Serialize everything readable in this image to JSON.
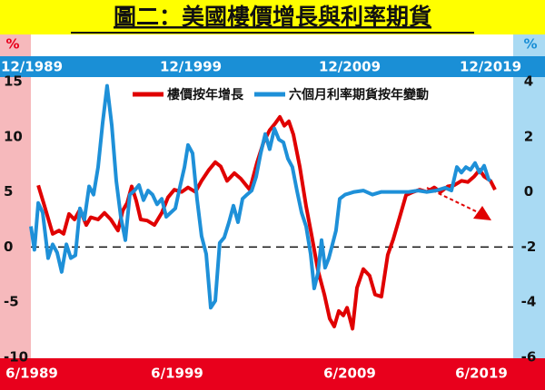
{
  "chart_data": {
    "type": "line",
    "title": "圖二：美國樓價增長與利率期貨",
    "left_unit": "%",
    "right_unit": "%",
    "top_labels": [
      "12/1989",
      "12/1999",
      "12/2009",
      "12/2019"
    ],
    "bottom_labels": [
      "6/1989",
      "6/1999",
      "6/2009",
      "6/2019"
    ],
    "xlim": [
      1989,
      2020
    ],
    "ylim": [
      -10,
      15
    ],
    "yticks": [
      -10,
      -5,
      0,
      5,
      10,
      15
    ],
    "y2lim": [
      -6,
      4
    ],
    "y2ticks": [
      -6,
      -4,
      -2,
      0,
      2,
      4
    ],
    "legend": "top-right",
    "series": [
      {
        "name": "樓價按年增長",
        "color": "#e00000",
        "x": [
          1989.47,
          1989.82,
          1990.4,
          1990.81,
          1991.1,
          1991.45,
          1991.8,
          1992.15,
          1992.56,
          1992.85,
          1993.32,
          1993.73,
          1994.14,
          1994.6,
          1994.9,
          1995.19,
          1995.48,
          1995.77,
          1996.06,
          1996.47,
          1996.94,
          1997.41,
          1997.81,
          1998.22,
          1998.69,
          1999.1,
          1999.57,
          1999.97,
          2000.44,
          2000.85,
          2001.2,
          2001.61,
          2002.08,
          2002.49,
          2003.07,
          2003.54,
          2003.95,
          2004.35,
          2004.7,
          2005.0,
          2005.29,
          2005.58,
          2005.87,
          2006.28,
          2006.69,
          2007.04,
          2007.45,
          2007.86,
          2008.21,
          2008.5,
          2008.79,
          2009.08,
          2009.32,
          2009.67,
          2009.96,
          2010.37,
          2010.77,
          2011.12,
          2011.53,
          2011.94,
          2012.29,
          2012.7,
          2013.11,
          2013.58,
          2013.99,
          2014.45,
          2014.92,
          2015.33,
          2015.8,
          2016.2,
          2016.67,
          2017.08,
          2017.49,
          2017.84,
          2018.13,
          2018.54,
          2018.83
        ],
        "values": [
          5.6,
          4,
          1.2,
          1.5,
          1.2,
          3,
          2.5,
          3.4,
          2,
          2.7,
          2.5,
          3.1,
          2.5,
          1.5,
          3.3,
          4,
          5.5,
          4.2,
          2.5,
          2.4,
          2,
          3.1,
          4.5,
          5.2,
          5,
          5.4,
          5,
          6,
          7,
          7.7,
          7.3,
          6,
          6.7,
          6.2,
          5.2,
          7.7,
          9.5,
          10.6,
          11.2,
          11.8,
          11,
          11.4,
          10.2,
          7.3,
          3.7,
          1.1,
          -2.1,
          -4.3,
          -6.5,
          -7.2,
          -5.8,
          -6.2,
          -5.5,
          -7.4,
          -3.7,
          -2,
          -2.6,
          -4.3,
          -4.5,
          -0.7,
          0.7,
          2.7,
          4.7,
          5,
          5.2,
          5,
          5.4,
          5,
          5.5,
          5.6,
          6,
          5.9,
          6.4,
          7,
          6.4,
          6,
          5.2
        ]
      },
      {
        "name": "六個月利率期貨按年變動",
        "color": "#1e90d8",
        "axis": "y2",
        "x": [
          1989.0,
          1989.23,
          1989.47,
          1989.76,
          1990.11,
          1990.4,
          1990.69,
          1990.98,
          1991.28,
          1991.57,
          1991.86,
          1992.15,
          1992.44,
          1992.74,
          1993.03,
          1993.32,
          1993.61,
          1993.9,
          1994.2,
          1994.49,
          1994.78,
          1995.07,
          1995.36,
          1995.66,
          1995.95,
          1996.24,
          1996.53,
          1996.82,
          1997.11,
          1997.41,
          1997.7,
          1997.99,
          1998.28,
          1998.57,
          1998.87,
          1999.1,
          1999.39,
          1999.68,
          1999.97,
          2000.27,
          2000.56,
          2000.85,
          2001.14,
          2001.43,
          2001.73,
          2002.02,
          2002.31,
          2002.6,
          2002.89,
          2003.19,
          2003.48,
          2003.77,
          2004.06,
          2004.35,
          2004.65,
          2004.94,
          2005.23,
          2005.52,
          2005.81,
          2006.1,
          2006.4,
          2006.69,
          2006.98,
          2007.21,
          2007.45,
          2007.68,
          2007.91,
          2008.15,
          2008.38,
          2008.61,
          2008.85,
          2009.2,
          2009.78,
          2010.37,
          2010.95,
          2011.53,
          2012.12,
          2012.7,
          2013.28,
          2013.87,
          2014.45,
          2015.04,
          2015.62,
          2016.03,
          2016.38,
          2016.67,
          2016.96,
          2017.25,
          2017.55,
          2017.84,
          2018.13,
          2018.42,
          2018.54
        ],
        "values": [
          -1.25,
          -2.1,
          -0.4,
          -0.75,
          -2.4,
          -1.9,
          -2.2,
          -2.9,
          -1.9,
          -2.4,
          -2.3,
          -0.6,
          -1,
          0.2,
          -0.1,
          0.9,
          2.5,
          3.85,
          2.4,
          0.4,
          -0.9,
          -1.75,
          -0.1,
          0.05,
          0.25,
          -0.3,
          0.05,
          -0.1,
          -0.45,
          -0.25,
          -0.9,
          -0.75,
          -0.6,
          0.15,
          0.9,
          1.7,
          1.4,
          -0.25,
          -1.6,
          -2.25,
          -4.2,
          -3.95,
          -1.85,
          -1.65,
          -1.1,
          -0.5,
          -1.1,
          -0.25,
          -0.1,
          0.05,
          0.55,
          1.4,
          2.1,
          1.55,
          2.3,
          1.9,
          1.8,
          1.2,
          0.9,
          0.05,
          -0.75,
          -1.25,
          -2.25,
          -3.5,
          -2.95,
          -1.75,
          -2.75,
          -2.4,
          -1.9,
          -1.4,
          -0.25,
          -0.1,
          0,
          0.05,
          -0.1,
          0,
          0,
          0,
          0,
          0.05,
          0,
          0.05,
          0.15,
          0.05,
          0.9,
          0.7,
          0.9,
          0.8,
          1.05,
          0.7,
          0.95,
          0.45,
          0.4
        ]
      }
    ]
  }
}
